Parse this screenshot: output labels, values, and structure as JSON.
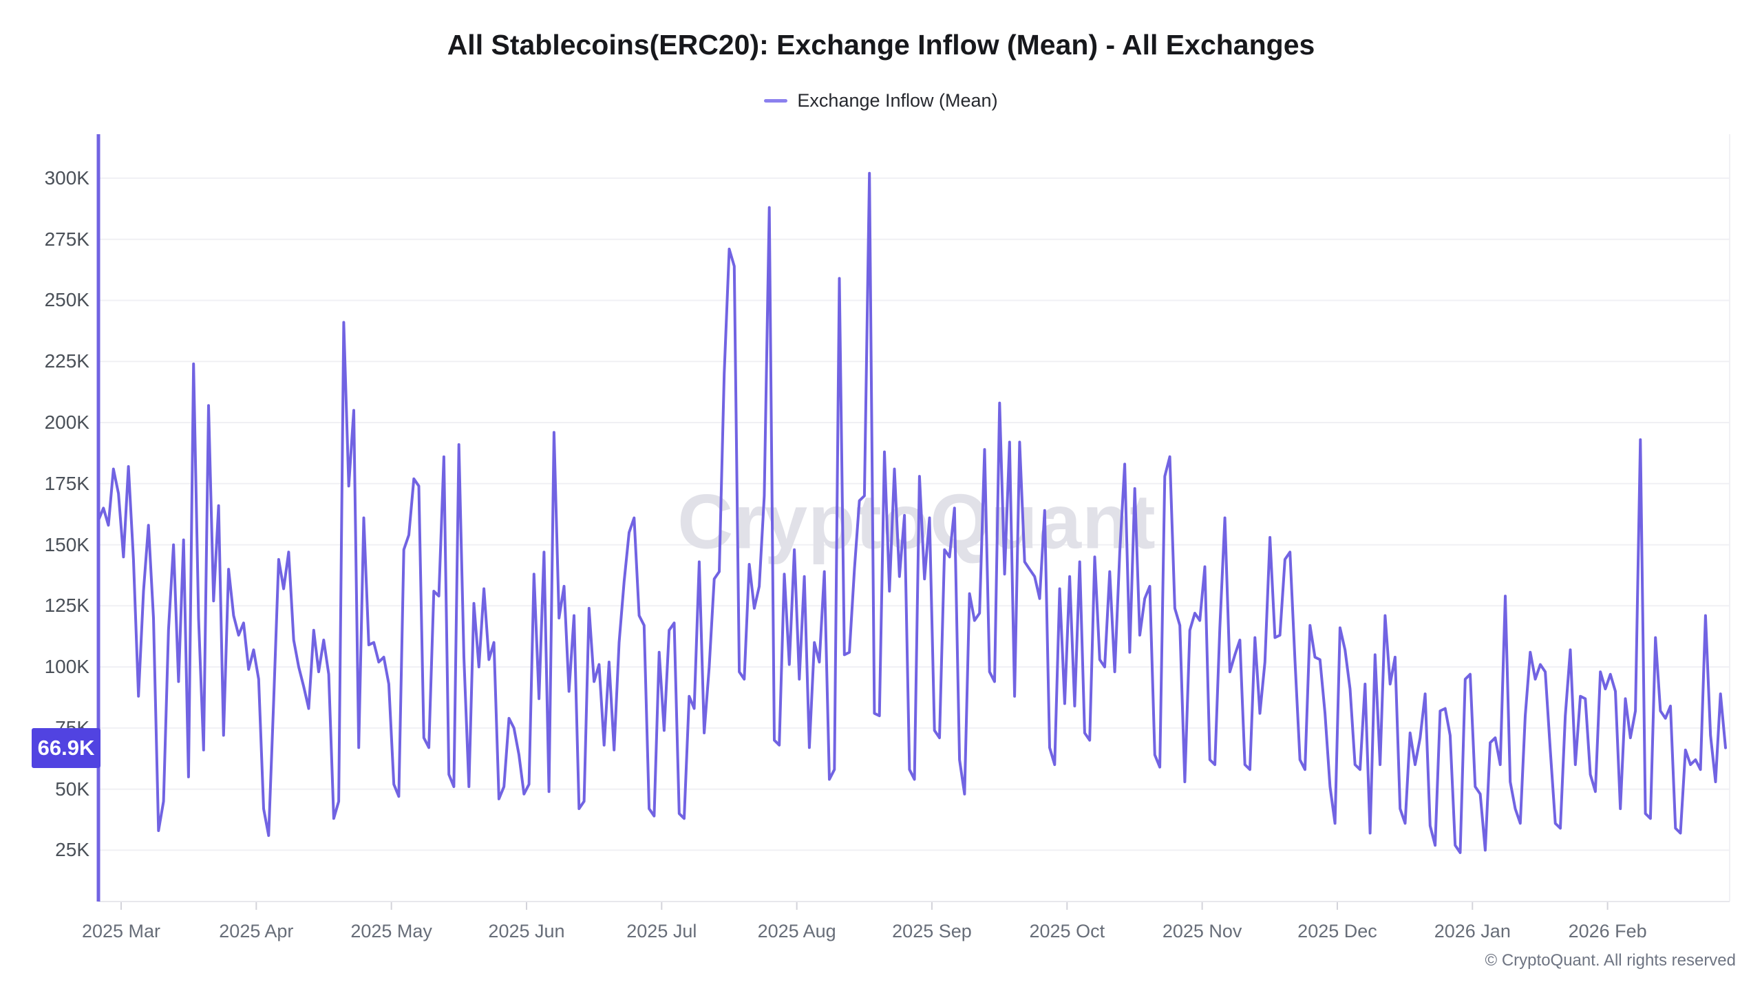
{
  "header": {
    "title": "All Stablecoins(ERC20): Exchange Inflow (Mean) - All Exchanges"
  },
  "legend": {
    "label": "Exchange Inflow (Mean)",
    "dash_color": "#8b80ee"
  },
  "watermark": "CryptoQuant",
  "footer": {
    "copyright": "© CryptoQuant. All rights reserved"
  },
  "latest_badge": {
    "label": "66.9K",
    "value_k": 66.9,
    "bg_color": "#5143e1",
    "text_color": "#ffffff"
  },
  "chart_data": {
    "type": "line",
    "title": "All Stablecoins(ERC20): Exchange Inflow (Mean) - All Exchanges",
    "legend_position": "top",
    "grid": "horizontal",
    "line_color": "#7163e2",
    "gridline_color": "#f0f0f4",
    "axis_color": "#e7e7ec",
    "tick_color": "#d3d3da",
    "x_tick_labels": [
      "2025 Mar",
      "2025 Apr",
      "2025 May",
      "2025 Jun",
      "2025 Jul",
      "2025 Aug",
      "2025 Sep",
      "2025 Oct",
      "2025 Nov",
      "2025 Dec",
      "2026 Jan",
      "2026 Feb"
    ],
    "y_ticks": [
      {
        "label": "25K",
        "value_k": 25
      },
      {
        "label": "50K",
        "value_k": 50
      },
      {
        "label": "75K",
        "value_k": 75
      },
      {
        "label": "100K",
        "value_k": 100
      },
      {
        "label": "125K",
        "value_k": 125
      },
      {
        "label": "150K",
        "value_k": 150
      },
      {
        "label": "175K",
        "value_k": 175
      },
      {
        "label": "200K",
        "value_k": 200
      },
      {
        "label": "225K",
        "value_k": 225
      },
      {
        "label": "250K",
        "value_k": 250
      },
      {
        "label": "275K",
        "value_k": 275
      },
      {
        "label": "300K",
        "value_k": 300
      }
    ],
    "ylim_k": [
      4,
      318
    ],
    "left_edge_spike_k": {
      "from": 4,
      "to": 318
    },
    "series": [
      {
        "name": "Exchange Inflow (Mean)",
        "unit": "K",
        "values_k": [
          160,
          165,
          158,
          181,
          171,
          145,
          182,
          144,
          88,
          131,
          158,
          120,
          33,
          45,
          115,
          150,
          94,
          152,
          55,
          224,
          120,
          66,
          207,
          127,
          166,
          72,
          140,
          121,
          113,
          118,
          99,
          107,
          95,
          42,
          31,
          86,
          144,
          132,
          147,
          111,
          100,
          92,
          83,
          115,
          98,
          111,
          97,
          38,
          45,
          241,
          174,
          205,
          67,
          161,
          109,
          110,
          102,
          104,
          93,
          52,
          47,
          148,
          154,
          177,
          174,
          71,
          67,
          131,
          129,
          186,
          56,
          51,
          191,
          104,
          51,
          126,
          100,
          132,
          103,
          110,
          46,
          51,
          79,
          75,
          64,
          48,
          52,
          138,
          87,
          147,
          49,
          196,
          120,
          133,
          90,
          121,
          42,
          45,
          124,
          94,
          101,
          68,
          102,
          66,
          110,
          135,
          155,
          161,
          121,
          117,
          42,
          39,
          106,
          74,
          115,
          118,
          40,
          38,
          88,
          83,
          143,
          73,
          100,
          136,
          139,
          220,
          271,
          264,
          98,
          95,
          142,
          124,
          133,
          170,
          288,
          70,
          68,
          138,
          101,
          148,
          95,
          137,
          67,
          110,
          102,
          139,
          54,
          58,
          259,
          105,
          106,
          140,
          168,
          170,
          302,
          81,
          80,
          188,
          131,
          181,
          137,
          162,
          58,
          54,
          178,
          136,
          161,
          74,
          71,
          148,
          145,
          165,
          62,
          48,
          130,
          119,
          122,
          189,
          98,
          94,
          208,
          138,
          192,
          88,
          192,
          143,
          140,
          137,
          128,
          164,
          67,
          60,
          132,
          85,
          137,
          84,
          143,
          73,
          70,
          145,
          103,
          100,
          139,
          98,
          147,
          183,
          106,
          173,
          113,
          128,
          133,
          64,
          59,
          178,
          186,
          124,
          117,
          53,
          115,
          122,
          119,
          141,
          62,
          60,
          116,
          161,
          98,
          105,
          111,
          60,
          58,
          112,
          81,
          102,
          153,
          112,
          113,
          144,
          147,
          103,
          62,
          58,
          117,
          104,
          103,
          81,
          51,
          36,
          116,
          107,
          91,
          60,
          58,
          93,
          32,
          105,
          60,
          121,
          93,
          104,
          42,
          36,
          73,
          60,
          71,
          89,
          35,
          27,
          82,
          83,
          72,
          27,
          24,
          95,
          97,
          51,
          48,
          25,
          69,
          71,
          60,
          129,
          53,
          42,
          36,
          80,
          106,
          95,
          101,
          98,
          66,
          36,
          34,
          80,
          107,
          60,
          88,
          87,
          56,
          49,
          98,
          91,
          97,
          90,
          42,
          87,
          71,
          82,
          193,
          40,
          38,
          112,
          82,
          79,
          84,
          34,
          32,
          66,
          60,
          62,
          58,
          121,
          72,
          53,
          89,
          66.9
        ]
      }
    ]
  }
}
